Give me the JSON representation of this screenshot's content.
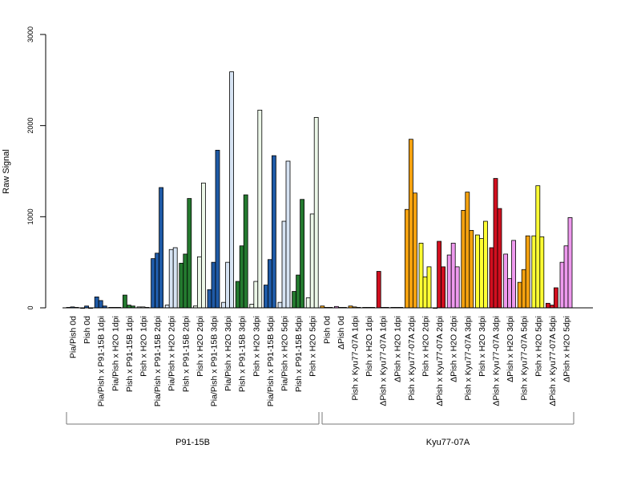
{
  "chart_data": {
    "type": "bar",
    "title": "",
    "ylabel": "Raw Signal",
    "xlabel": "",
    "ylim": [
      0,
      3000
    ],
    "yticks": [
      0,
      1000,
      2000,
      3000
    ],
    "bars_per_group": 3,
    "categories": [
      "Pia/Pish 0d",
      "Pish 0d",
      "Pia/Pish x P91-15B 1dpi",
      "Pia/Pish x H2O 1dpi",
      "Pish x P91-15B 1dpi",
      "Pish x H2O 1dpi",
      "Pia/Pish x P91-15B 2dpi",
      "Pia/Pish x H2O 2dpi",
      "Pish x P91-15B 2dpi",
      "Pish x H2O 2dpi",
      "Pia/Pish x P91-15B 3dpi",
      "Pia/Pish x H2O 3dpi",
      "Pish x P91-15B 3dpi",
      "Pish x H2O 3dpi",
      "Pia/Pish x P91-15B 5dpi",
      "Pia/Pish x H2O 5dpi",
      "Pish x P91-15B 5dpi",
      "Pish x H2O 5dpi",
      "Pish 0d",
      "ΔPish 0d",
      "Pish x Kyu77-07A 1dpi",
      "Pish x H2O 1dpi",
      "ΔPish x Kyu77-07A 1dpi",
      "ΔPish x H2O 1dpi",
      "Pish x Kyu77-07A 2dpi",
      "Pish x H2O 2dpi",
      "ΔPish x Kyu77-07A 2dpi",
      "ΔPish x H2O 2dpi",
      "Pish x Kyu77-07A 3dpi",
      "Pish x H2O 3dpi",
      "ΔPish x Kyu77-07A 3dpi",
      "ΔPish x H2O 3dpi",
      "Pish x Kyu77-07A 5dpi",
      "Pish x H2O 5dpi",
      "ΔPish x Kyu77-07A 5dpi",
      "ΔPish x H2O 5dpi"
    ],
    "colors": [
      "#1f5aa6",
      "#1f5aa6",
      "#1f5aa6",
      "#d6e3f3",
      "#247a2f",
      "#ecf7e8",
      "#1f5aa6",
      "#d6e3f3",
      "#247a2f",
      "#ecf7e8",
      "#1f5aa6",
      "#d6e3f3",
      "#247a2f",
      "#ecf7e8",
      "#1f5aa6",
      "#d6e3f3",
      "#247a2f",
      "#ecf7e8",
      "#f5a20f",
      "#ee99ee",
      "#f5a20f",
      "#ffff33",
      "#d10f1f",
      "#ee99ee",
      "#f5a20f",
      "#ffff33",
      "#d10f1f",
      "#ee99ee",
      "#f5a20f",
      "#ffff33",
      "#d10f1f",
      "#ee99ee",
      "#f5a20f",
      "#ffff33",
      "#d10f1f",
      "#ee99ee"
    ],
    "values": [
      [
        5,
        10,
        5
      ],
      [
        0,
        20,
        0
      ],
      [
        120,
        80,
        20
      ],
      [
        5,
        5,
        5
      ],
      [
        140,
        30,
        20
      ],
      [
        10,
        10,
        5
      ],
      [
        540,
        600,
        1320
      ],
      [
        30,
        640,
        660
      ],
      [
        490,
        590,
        1200
      ],
      [
        20,
        560,
        1370
      ],
      [
        200,
        500,
        1730
      ],
      [
        60,
        500,
        2590
      ],
      [
        290,
        680,
        1240
      ],
      [
        40,
        290,
        2170
      ],
      [
        250,
        530,
        1670
      ],
      [
        60,
        950,
        1610
      ],
      [
        180,
        360,
        1190
      ],
      [
        110,
        1030,
        2090
      ],
      [
        20,
        5,
        5
      ],
      [
        15,
        5,
        5
      ],
      [
        20,
        10,
        5
      ],
      [
        5,
        5,
        5
      ],
      [
        400,
        5,
        5
      ],
      [
        5,
        5,
        5
      ],
      [
        1080,
        1850,
        1260
      ],
      [
        710,
        340,
        450
      ],
      [
        0,
        730,
        450
      ],
      [
        580,
        710,
        450
      ],
      [
        1070,
        1270,
        850
      ],
      [
        800,
        760,
        950
      ],
      [
        660,
        1420,
        1090
      ],
      [
        590,
        320,
        740
      ],
      [
        280,
        420,
        790
      ],
      [
        790,
        1340,
        780
      ],
      [
        50,
        30,
        220
      ],
      [
        500,
        680,
        990
      ]
    ],
    "groups": [
      {
        "label": "P91-15B",
        "from": 0,
        "to": 17
      },
      {
        "label": "Kyu77-07A",
        "from": 18,
        "to": 35
      }
    ],
    "grid": false,
    "legend": "none"
  }
}
